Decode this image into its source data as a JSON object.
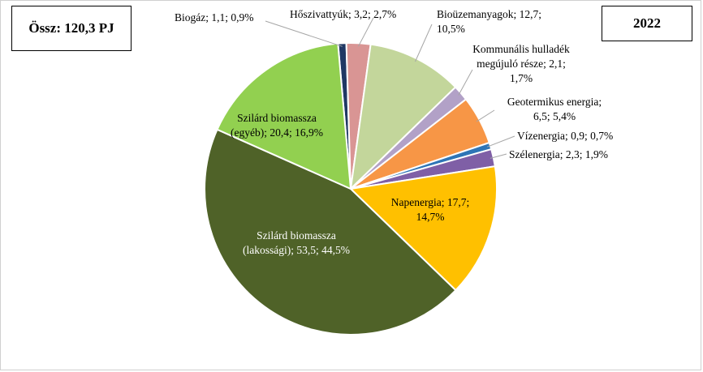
{
  "header": {
    "total_label": "Össz: 120,3 PJ",
    "year_label": "2022"
  },
  "chart_data": {
    "type": "pie",
    "total": 120.3,
    "unit": "PJ",
    "slices": [
      {
        "name": "Biogáz",
        "value": 1.1,
        "percent": 0.9,
        "color": "#1f3864",
        "label_lines": [
          "Biogáz; 1,1; 0,9%"
        ]
      },
      {
        "name": "Hőszivattyúk",
        "value": 3.2,
        "percent": 2.7,
        "color": "#d99594",
        "label_lines": [
          "Hőszivattyúk; 3,2; 2,7%"
        ]
      },
      {
        "name": "Bioüzemanyagok",
        "value": 12.7,
        "percent": 10.5,
        "color": "#c3d69b",
        "label_lines": [
          "Bioüzemanyagok; 12,7;",
          "10,5%"
        ]
      },
      {
        "name": "Kommunális hulladék megújuló része",
        "value": 2.1,
        "percent": 1.7,
        "color": "#b2a1c7",
        "label_lines": [
          "Kommunális hulladék",
          "megújuló része; 2,1;",
          "1,7%"
        ]
      },
      {
        "name": "Geotermikus energia",
        "value": 6.5,
        "percent": 5.4,
        "color": "#f79646",
        "label_lines": [
          "Geotermikus energia;",
          "6,5; 5,4%"
        ]
      },
      {
        "name": "Vízenergia",
        "value": 0.9,
        "percent": 0.7,
        "color": "#2e75b6",
        "label_lines": [
          "Vízenergia; 0,9; 0,7%"
        ]
      },
      {
        "name": "Szélenergia",
        "value": 2.3,
        "percent": 1.9,
        "color": "#7f5fa6",
        "label_lines": [
          "Szélenergia; 2,3; 1,9%"
        ]
      },
      {
        "name": "Napenergia",
        "value": 17.7,
        "percent": 14.7,
        "color": "#ffc000",
        "label_lines": [
          "Napenergia; 17,7;",
          "14,7%"
        ]
      },
      {
        "name": "Szilárd biomassza (lakossági)",
        "value": 53.5,
        "percent": 44.5,
        "color": "#4f6228",
        "label_lines": [
          "Szilárd biomassza",
          "(lakossági); 53,5; 44,5%"
        ]
      },
      {
        "name": "Szilárd biomassza (egyéb)",
        "value": 20.4,
        "percent": 16.9,
        "color": "#92d050",
        "label_lines": [
          "Szilárd biomassza",
          "(egyéb); 20,4; 16,9%"
        ]
      }
    ]
  }
}
